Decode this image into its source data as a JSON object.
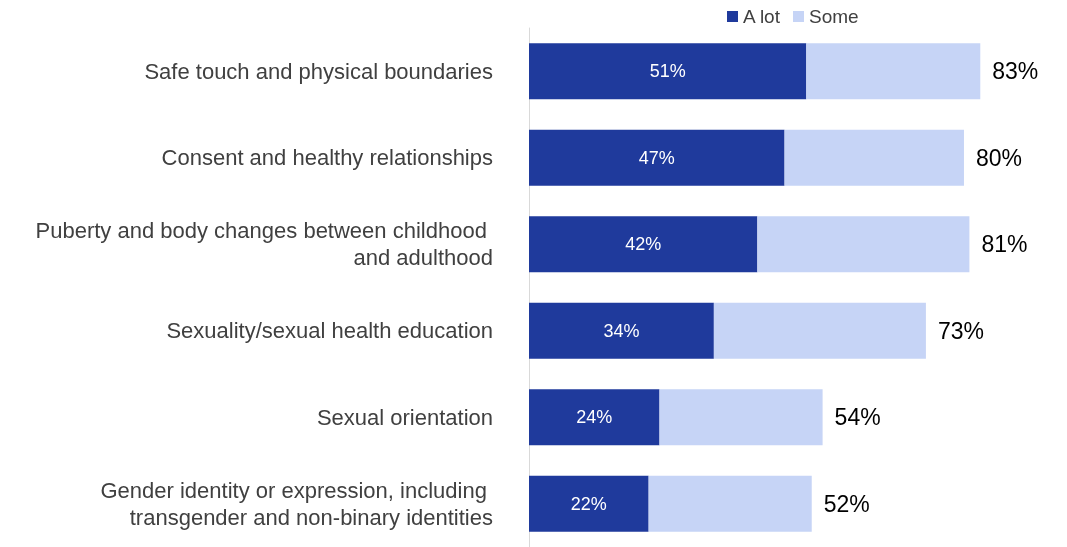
{
  "chart_data": {
    "type": "bar",
    "orientation": "horizontal",
    "stacked": true,
    "legend": "top",
    "categories": [
      "Safe touch and physical boundaries",
      "Consent and healthy relationships",
      "Puberty and body changes between childhood and adulthood",
      "Sexuality/sexual health education",
      "Sexual orientation",
      "Gender identity or expression, including transgender and non-binary identities"
    ],
    "series": [
      {
        "name": "A lot",
        "color": "#1f3a9c",
        "values": [
          51,
          47,
          42,
          34,
          24,
          22
        ],
        "value_labels": [
          "51%",
          "47%",
          "42%",
          "34%",
          "24%",
          "22%"
        ]
      },
      {
        "name": "Some",
        "color": "#c6d4f6",
        "values": [
          32,
          33,
          39,
          39,
          30,
          30
        ]
      }
    ],
    "totals": [
      "83%",
      "80%",
      "81%",
      "73%",
      "54%",
      "52%"
    ]
  }
}
